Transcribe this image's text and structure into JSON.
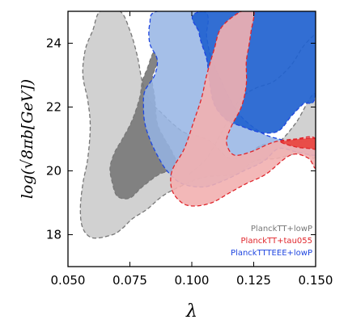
{
  "chart_data": {
    "type": "contour",
    "xlabel": "λ",
    "ylabel": "log(√8πb[GeV])",
    "xlim": [
      0.05,
      0.15
    ],
    "ylim": [
      17,
      25
    ],
    "xticks": [
      "0.050",
      "0.075",
      "0.100",
      "0.125",
      "0.150"
    ],
    "yticks": [
      "18",
      "20",
      "22",
      "24"
    ],
    "grid": false,
    "legend_position": "bottom-right",
    "series": [
      {
        "name": "PlanckTT+lowP",
        "color": "#777777",
        "outer_fill": "#cccccc",
        "inner_fill": "#7a7a7a",
        "outer": [
          [
            0.063,
            25
          ],
          [
            0.071,
            25
          ],
          [
            0.075,
            24.4
          ],
          [
            0.078,
            23.6
          ],
          [
            0.08,
            22.8
          ],
          [
            0.083,
            22.2
          ],
          [
            0.088,
            21.8
          ],
          [
            0.092,
            21.5
          ],
          [
            0.097,
            21.2
          ],
          [
            0.102,
            21.1
          ],
          [
            0.108,
            20.9
          ],
          [
            0.115,
            20.4
          ],
          [
            0.122,
            20.5
          ],
          [
            0.128,
            20.8
          ],
          [
            0.135,
            20.9
          ],
          [
            0.142,
            21.5
          ],
          [
            0.15,
            22.4
          ],
          [
            0.15,
            20.5
          ],
          [
            0.145,
            20.6
          ],
          [
            0.135,
            20.4
          ],
          [
            0.125,
            20.3
          ],
          [
            0.118,
            19.9
          ],
          [
            0.105,
            19.8
          ],
          [
            0.095,
            19.5
          ],
          [
            0.088,
            19.2
          ],
          [
            0.082,
            18.8
          ],
          [
            0.076,
            18.5
          ],
          [
            0.072,
            18.2
          ],
          [
            0.068,
            18.0
          ],
          [
            0.06,
            17.9
          ],
          [
            0.056,
            18.2
          ],
          [
            0.055,
            18.8
          ],
          [
            0.056,
            19.6
          ],
          [
            0.058,
            20.4
          ],
          [
            0.059,
            21.4
          ],
          [
            0.058,
            22.2
          ],
          [
            0.056,
            23.0
          ],
          [
            0.057,
            23.8
          ],
          [
            0.06,
            24.4
          ]
        ],
        "inner": [
          [
            0.0845,
            23.7
          ],
          [
            0.082,
            23.2
          ],
          [
            0.08,
            22.8
          ],
          [
            0.079,
            22.3
          ],
          [
            0.076,
            21.6
          ],
          [
            0.072,
            21.0
          ],
          [
            0.069,
            20.6
          ],
          [
            0.067,
            20.1
          ],
          [
            0.068,
            19.6
          ],
          [
            0.07,
            19.2
          ],
          [
            0.075,
            19.15
          ],
          [
            0.08,
            19.5
          ],
          [
            0.087,
            19.9
          ],
          [
            0.094,
            20.1
          ],
          [
            0.092,
            20.6
          ],
          [
            0.089,
            21.0
          ],
          [
            0.086,
            21.5
          ],
          [
            0.085,
            22.3
          ],
          [
            0.084,
            22.9
          ],
          [
            0.086,
            23.4
          ]
        ],
        "line": [
          [
            0.099,
            19.9
          ],
          [
            0.106,
            20.4
          ],
          [
            0.112,
            21.2
          ],
          [
            0.116,
            21.8
          ],
          [
            0.12,
            22.3
          ],
          [
            0.126,
            22.6
          ],
          [
            0.133,
            22.8
          ],
          [
            0.14,
            23.3
          ],
          [
            0.145,
            23.9
          ],
          [
            0.15,
            24.3
          ]
        ]
      },
      {
        "name": "PlanckTT+tau055",
        "color": "#e0252b",
        "outer_fill": "#f2b0b0",
        "inner_fill": "#e8443f",
        "outer": [
          [
            0.12,
            25
          ],
          [
            0.125,
            25
          ],
          [
            0.124,
            24.4
          ],
          [
            0.123,
            23.9
          ],
          [
            0.122,
            23.4
          ],
          [
            0.122,
            22.7
          ],
          [
            0.12,
            22.0
          ],
          [
            0.116,
            21.4
          ],
          [
            0.114,
            20.9
          ],
          [
            0.117,
            20.5
          ],
          [
            0.124,
            20.6
          ],
          [
            0.133,
            20.9
          ],
          [
            0.142,
            21.0
          ],
          [
            0.15,
            21.0
          ],
          [
            0.15,
            20.1
          ],
          [
            0.147,
            20.4
          ],
          [
            0.14,
            20.5
          ],
          [
            0.13,
            19.9
          ],
          [
            0.122,
            19.6
          ],
          [
            0.115,
            19.3
          ],
          [
            0.108,
            19.0
          ],
          [
            0.101,
            18.9
          ],
          [
            0.096,
            19.0
          ],
          [
            0.092,
            19.4
          ],
          [
            0.092,
            20.0
          ],
          [
            0.097,
            20.7
          ],
          [
            0.101,
            21.6
          ],
          [
            0.104,
            22.3
          ],
          [
            0.106,
            23.0
          ],
          [
            0.109,
            23.8
          ],
          [
            0.112,
            24.5
          ]
        ],
        "inner": [
          [
            0.136,
            20.9
          ],
          [
            0.142,
            20.75
          ],
          [
            0.148,
            20.7
          ],
          [
            0.15,
            20.7
          ],
          [
            0.15,
            21.0
          ],
          [
            0.144,
            21.0
          ],
          [
            0.139,
            20.95
          ]
        ],
        "line": []
      },
      {
        "name": "PlanckTTTEEE+lowP",
        "color": "#1f46e0",
        "outer_fill": "#95b4e4",
        "inner_fill": "#2162cf",
        "outer": [
          [
            0.086,
            25
          ],
          [
            0.105,
            25
          ],
          [
            0.106,
            24.2
          ],
          [
            0.108,
            23.5
          ],
          [
            0.112,
            22.8
          ],
          [
            0.115,
            22.3
          ],
          [
            0.12,
            21.7
          ],
          [
            0.128,
            21.2
          ],
          [
            0.135,
            21.0
          ],
          [
            0.142,
            20.9
          ],
          [
            0.15,
            20.9
          ],
          [
            0.15,
            20.5
          ],
          [
            0.142,
            20.6
          ],
          [
            0.135,
            20.7
          ],
          [
            0.129,
            20.3
          ],
          [
            0.121,
            20.0
          ],
          [
            0.113,
            19.7
          ],
          [
            0.105,
            19.5
          ],
          [
            0.096,
            19.6
          ],
          [
            0.09,
            20.0
          ],
          [
            0.086,
            20.5
          ],
          [
            0.083,
            21.0
          ],
          [
            0.081,
            21.5
          ],
          [
            0.0805,
            22.0
          ],
          [
            0.081,
            22.5
          ],
          [
            0.085,
            23.0
          ],
          [
            0.086,
            23.5
          ],
          [
            0.083,
            24.0
          ],
          [
            0.083,
            24.6
          ]
        ],
        "inner": [
          [
            0.104,
            25
          ],
          [
            0.15,
            25
          ],
          [
            0.15,
            22.4
          ],
          [
            0.145,
            22.1
          ],
          [
            0.14,
            21.7
          ],
          [
            0.135,
            21.25
          ],
          [
            0.128,
            21.2
          ],
          [
            0.12,
            21.4
          ],
          [
            0.114,
            21.6
          ],
          [
            0.109,
            22.1
          ],
          [
            0.107,
            22.9
          ],
          [
            0.106,
            23.5
          ],
          [
            0.103,
            24.3
          ]
        ],
        "line": []
      }
    ]
  }
}
